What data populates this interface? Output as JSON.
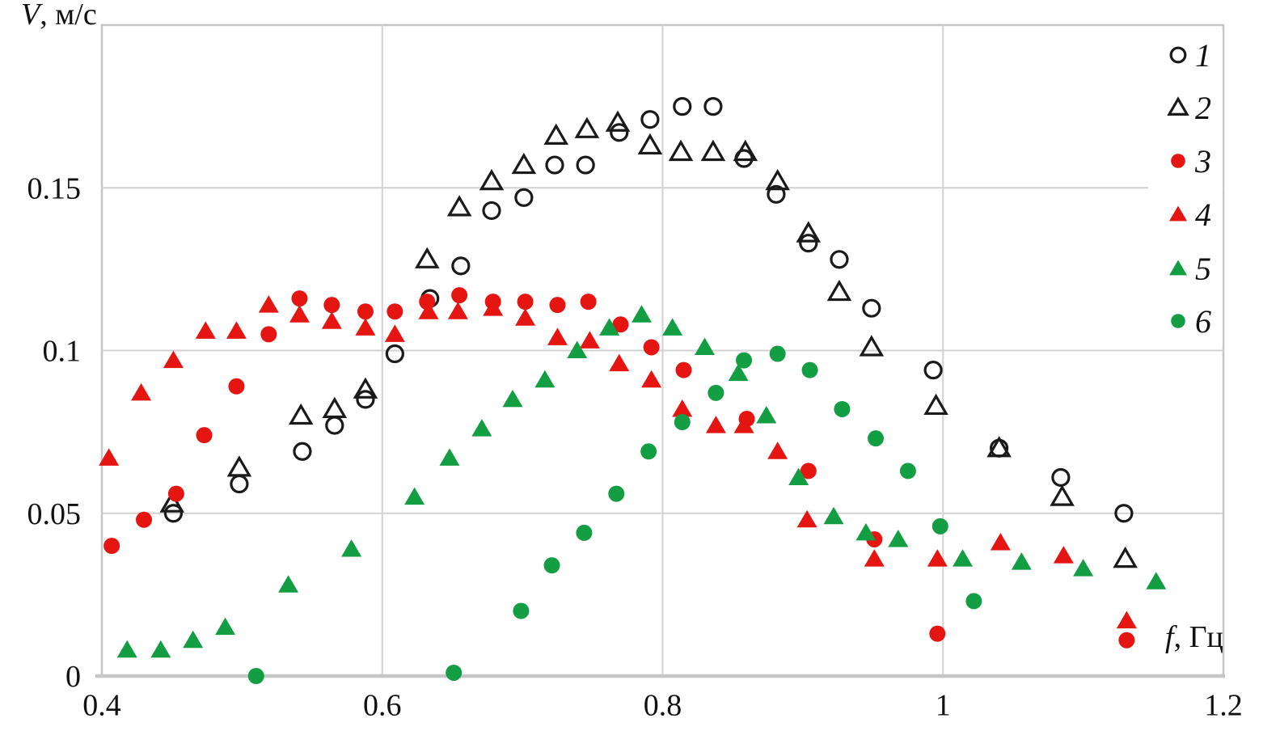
{
  "chart_data": {
    "type": "scatter",
    "title": "",
    "xlabel": "f, Гц",
    "xlabel_var": "f",
    "xlabel_rest": ", Гц",
    "ylabel": "V, м/с",
    "ylabel_var": "V",
    "ylabel_rest": ", м/с",
    "xlim": [
      0.4,
      1.2
    ],
    "ylim": [
      0,
      0.2
    ],
    "grid": true,
    "grid_x": [
      0.6,
      0.8,
      1.0
    ],
    "grid_y": [
      0.05,
      0.1,
      0.15
    ],
    "x_ticks": [
      {
        "value": 0.4,
        "label": "0.4"
      },
      {
        "value": 0.6,
        "label": "0.6"
      },
      {
        "value": 0.8,
        "label": "0.8"
      },
      {
        "value": 1.0,
        "label": "1"
      },
      {
        "value": 1.2,
        "label": "1.2"
      }
    ],
    "y_ticks": [
      {
        "value": 0,
        "label": "0"
      },
      {
        "value": 0.05,
        "label": "0.05"
      },
      {
        "value": 0.1,
        "label": "0.1"
      },
      {
        "value": 0.15,
        "label": "0.15"
      }
    ],
    "legend_position": "top-right",
    "colors": {
      "black_outline": "#1a1a1a",
      "red": "#e51511",
      "green": "#149e44",
      "grid_line": "#d2d2d2",
      "axis_line": "#c6c6c6",
      "text": "#111111"
    },
    "series": [
      {
        "name": "1",
        "marker": "circle",
        "fill": "open",
        "color": "#1a1a1a",
        "points": [
          [
            0.451,
            0.05
          ],
          [
            0.498,
            0.059
          ],
          [
            0.543,
            0.069
          ],
          [
            0.566,
            0.077
          ],
          [
            0.588,
            0.085
          ],
          [
            0.609,
            0.099
          ],
          [
            0.634,
            0.116
          ],
          [
            0.656,
            0.126
          ],
          [
            0.678,
            0.143
          ],
          [
            0.701,
            0.147
          ],
          [
            0.723,
            0.157
          ],
          [
            0.745,
            0.157
          ],
          [
            0.769,
            0.167
          ],
          [
            0.791,
            0.171
          ],
          [
            0.814,
            0.175
          ],
          [
            0.836,
            0.175
          ],
          [
            0.858,
            0.159
          ],
          [
            0.881,
            0.148
          ],
          [
            0.904,
            0.133
          ],
          [
            0.926,
            0.128
          ],
          [
            0.949,
            0.113
          ],
          [
            0.993,
            0.094
          ],
          [
            1.04,
            0.07
          ],
          [
            1.084,
            0.061
          ],
          [
            1.129,
            0.05
          ]
        ]
      },
      {
        "name": "2",
        "marker": "triangle",
        "fill": "open",
        "color": "#1a1a1a",
        "points": [
          [
            0.45,
            0.053
          ],
          [
            0.498,
            0.064
          ],
          [
            0.542,
            0.08
          ],
          [
            0.566,
            0.082
          ],
          [
            0.588,
            0.088
          ],
          [
            0.632,
            0.128
          ],
          [
            0.655,
            0.144
          ],
          [
            0.678,
            0.152
          ],
          [
            0.701,
            0.157
          ],
          [
            0.724,
            0.166
          ],
          [
            0.746,
            0.168
          ],
          [
            0.768,
            0.17
          ],
          [
            0.791,
            0.163
          ],
          [
            0.813,
            0.161
          ],
          [
            0.836,
            0.161
          ],
          [
            0.859,
            0.161
          ],
          [
            0.882,
            0.152
          ],
          [
            0.904,
            0.136
          ],
          [
            0.926,
            0.118
          ],
          [
            0.949,
            0.101
          ],
          [
            0.995,
            0.083
          ],
          [
            1.04,
            0.07
          ],
          [
            1.085,
            0.055
          ],
          [
            1.13,
            0.036
          ]
        ]
      },
      {
        "name": "3",
        "marker": "circle",
        "fill": "solid",
        "color": "#e51511",
        "points": [
          [
            0.407,
            0.04
          ],
          [
            0.43,
            0.048
          ],
          [
            0.453,
            0.056
          ],
          [
            0.473,
            0.074
          ],
          [
            0.496,
            0.089
          ],
          [
            0.519,
            0.105
          ],
          [
            0.541,
            0.116
          ],
          [
            0.564,
            0.114
          ],
          [
            0.588,
            0.112
          ],
          [
            0.609,
            0.112
          ],
          [
            0.632,
            0.115
          ],
          [
            0.655,
            0.117
          ],
          [
            0.679,
            0.115
          ],
          [
            0.702,
            0.115
          ],
          [
            0.725,
            0.114
          ],
          [
            0.747,
            0.115
          ],
          [
            0.77,
            0.108
          ],
          [
            0.792,
            0.101
          ],
          [
            0.815,
            0.094
          ],
          [
            0.86,
            0.079
          ],
          [
            0.904,
            0.063
          ],
          [
            0.951,
            0.042
          ],
          [
            0.996,
            0.013
          ],
          [
            1.131,
            0.011
          ]
        ]
      },
      {
        "name": "4",
        "marker": "triangle",
        "fill": "solid",
        "color": "#e51511",
        "points": [
          [
            0.405,
            0.067
          ],
          [
            0.428,
            0.087
          ],
          [
            0.451,
            0.097
          ],
          [
            0.474,
            0.106
          ],
          [
            0.496,
            0.106
          ],
          [
            0.519,
            0.114
          ],
          [
            0.541,
            0.111
          ],
          [
            0.564,
            0.109
          ],
          [
            0.588,
            0.107
          ],
          [
            0.609,
            0.105
          ],
          [
            0.633,
            0.112
          ],
          [
            0.654,
            0.112
          ],
          [
            0.679,
            0.113
          ],
          [
            0.702,
            0.11
          ],
          [
            0.725,
            0.104
          ],
          [
            0.748,
            0.103
          ],
          [
            0.769,
            0.096
          ],
          [
            0.792,
            0.091
          ],
          [
            0.814,
            0.082
          ],
          [
            0.838,
            0.077
          ],
          [
            0.858,
            0.077
          ],
          [
            0.882,
            0.069
          ],
          [
            0.903,
            0.048
          ],
          [
            0.951,
            0.036
          ],
          [
            0.996,
            0.036
          ],
          [
            1.041,
            0.041
          ],
          [
            1.086,
            0.037
          ],
          [
            1.131,
            0.017
          ]
        ]
      },
      {
        "name": "5",
        "marker": "triangle",
        "fill": "solid",
        "color": "#149e44",
        "points": [
          [
            0.418,
            0.008
          ],
          [
            0.442,
            0.008
          ],
          [
            0.465,
            0.011
          ],
          [
            0.488,
            0.015
          ],
          [
            0.533,
            0.028
          ],
          [
            0.578,
            0.039
          ],
          [
            0.623,
            0.055
          ],
          [
            0.648,
            0.067
          ],
          [
            0.671,
            0.076
          ],
          [
            0.693,
            0.085
          ],
          [
            0.716,
            0.091
          ],
          [
            0.739,
            0.1
          ],
          [
            0.762,
            0.107
          ],
          [
            0.785,
            0.111
          ],
          [
            0.807,
            0.107
          ],
          [
            0.83,
            0.101
          ],
          [
            0.854,
            0.093
          ],
          [
            0.874,
            0.08
          ],
          [
            0.897,
            0.061
          ],
          [
            0.922,
            0.049
          ],
          [
            0.945,
            0.044
          ],
          [
            0.968,
            0.042
          ],
          [
            1.014,
            0.036
          ],
          [
            1.056,
            0.035
          ],
          [
            1.1,
            0.033
          ],
          [
            1.152,
            0.029
          ]
        ]
      },
      {
        "name": "6",
        "marker": "circle",
        "fill": "solid",
        "color": "#149e44",
        "points": [
          [
            0.51,
            0.0
          ],
          [
            0.651,
            0.001
          ],
          [
            0.699,
            0.02
          ],
          [
            0.721,
            0.034
          ],
          [
            0.744,
            0.044
          ],
          [
            0.767,
            0.056
          ],
          [
            0.79,
            0.069
          ],
          [
            0.814,
            0.078
          ],
          [
            0.838,
            0.087
          ],
          [
            0.858,
            0.097
          ],
          [
            0.882,
            0.099
          ],
          [
            0.905,
            0.094
          ],
          [
            0.928,
            0.082
          ],
          [
            0.952,
            0.073
          ],
          [
            0.975,
            0.063
          ],
          [
            0.998,
            0.046
          ],
          [
            1.022,
            0.023
          ]
        ]
      }
    ]
  }
}
